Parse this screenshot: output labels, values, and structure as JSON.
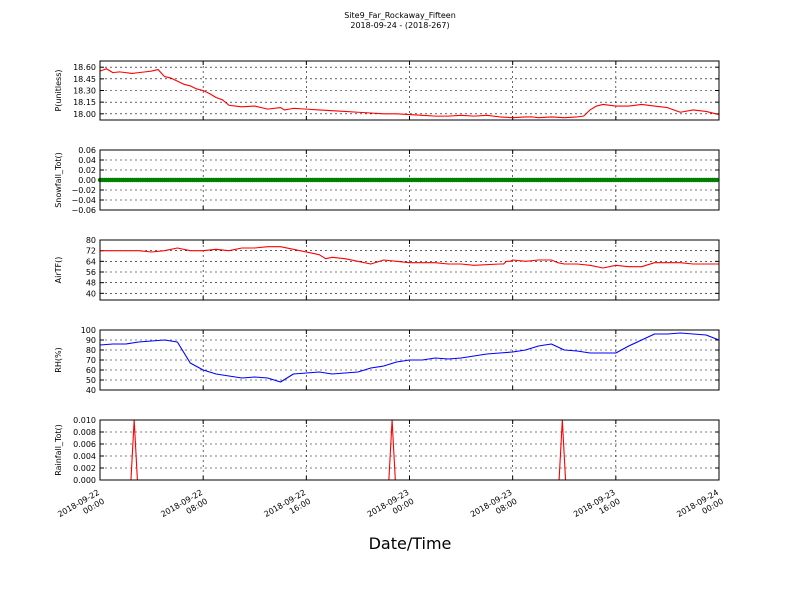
{
  "title": "Site9_Far_Rockaway_Fifteen",
  "subtitle": "2018-09-24 - (2018-267)",
  "xlabel": "Date/Time",
  "x_ticks": [
    [
      "2018-09-22",
      "00:00"
    ],
    [
      "2018-09-22",
      "08:00"
    ],
    [
      "2018-09-22",
      "16:00"
    ],
    [
      "2018-09-23",
      "00:00"
    ],
    [
      "2018-09-23",
      "08:00"
    ],
    [
      "2018-09-23",
      "16:00"
    ],
    [
      "2018-09-24",
      "00:00"
    ]
  ],
  "chart_data": [
    {
      "type": "line",
      "ylabel": "P(unitless)",
      "ylim": [
        17.92,
        18.68
      ],
      "yticks": [
        "18.60",
        "18.45",
        "18.30",
        "18.15",
        "18.00"
      ],
      "ytick_values": [
        18.6,
        18.45,
        18.3,
        18.15,
        18.0
      ],
      "xlim_hours": [
        0,
        48
      ],
      "grid": true,
      "series": [
        {
          "color": "#ff0000",
          "marker": "none",
          "x": [
            0,
            0.5,
            1,
            1.5,
            2,
            2.5,
            3,
            3.5,
            4,
            4.5,
            5,
            5.5,
            6,
            6.5,
            7,
            7.5,
            8,
            8.5,
            9,
            9.5,
            10,
            10.5,
            11,
            12,
            13,
            14,
            14.3,
            15,
            16,
            17,
            18,
            19,
            20,
            21,
            22,
            23,
            24,
            25,
            26,
            27,
            28,
            29,
            30,
            31,
            32,
            33,
            33.5,
            34,
            35,
            36,
            37,
            37.5,
            38,
            38.5,
            39,
            40,
            41,
            42,
            43,
            44,
            45,
            46,
            47,
            48
          ],
          "y": [
            18.55,
            18.58,
            18.53,
            18.54,
            18.53,
            18.52,
            18.53,
            18.54,
            18.55,
            18.57,
            18.48,
            18.46,
            18.42,
            18.38,
            18.36,
            18.32,
            18.3,
            18.26,
            18.21,
            18.18,
            18.11,
            18.1,
            18.09,
            18.1,
            18.06,
            18.08,
            18.05,
            18.07,
            18.06,
            18.05,
            18.04,
            18.03,
            18.02,
            18.01,
            18.0,
            18.0,
            17.99,
            17.98,
            17.97,
            17.97,
            17.98,
            17.97,
            17.98,
            17.96,
            17.95,
            17.96,
            17.96,
            17.95,
            17.96,
            17.95,
            17.96,
            17.97,
            18.05,
            18.1,
            18.12,
            18.1,
            18.1,
            18.12,
            18.1,
            18.08,
            18.02,
            18.05,
            18.03,
            17.99
          ]
        }
      ]
    },
    {
      "type": "scatter",
      "ylabel": "Snowfall_Tot()",
      "ylim": [
        -0.06,
        0.06
      ],
      "yticks": [
        "0.06",
        "0.04",
        "0.02",
        "0.00",
        "−0.02",
        "−0.04",
        "−0.06"
      ],
      "ytick_values": [
        0.06,
        0.04,
        0.02,
        0.0,
        -0.02,
        -0.04,
        -0.06
      ],
      "xlim_hours": [
        0,
        48
      ],
      "grid": true,
      "series": [
        {
          "color": "#008000",
          "marker": "dense-points",
          "x": [
            0,
            48
          ],
          "y": [
            0.0,
            0.0
          ]
        }
      ]
    },
    {
      "type": "line",
      "ylabel": "AirTF()",
      "ylim": [
        35,
        80
      ],
      "yticks": [
        "80",
        "72",
        "64",
        "56",
        "48",
        "40"
      ],
      "ytick_values": [
        80,
        72,
        64,
        56,
        48,
        40
      ],
      "xlim_hours": [
        0,
        48
      ],
      "grid": true,
      "series": [
        {
          "color": "#ff0000",
          "marker": "none",
          "x": [
            0,
            1,
            2,
            3,
            4,
            5,
            6,
            7,
            8,
            9,
            10,
            11,
            12,
            13,
            14,
            15,
            16,
            16.5,
            17,
            17.5,
            18,
            19,
            20,
            21,
            22,
            23,
            24,
            25,
            26,
            27,
            28,
            29,
            31,
            31.3,
            31.5,
            31.8,
            32,
            33,
            34,
            35,
            35.5,
            36,
            37,
            38,
            39,
            40,
            41,
            42,
            43,
            44,
            45,
            46,
            47,
            48
          ],
          "y": [
            72,
            72,
            72,
            72,
            71,
            72,
            74,
            72,
            72,
            73,
            72,
            74,
            74,
            75,
            75,
            73,
            71,
            70,
            69,
            66,
            67,
            66,
            64,
            62,
            65,
            64,
            63,
            63,
            63,
            62,
            62,
            61,
            62,
            62,
            64,
            64,
            65,
            64,
            65,
            65,
            63,
            62,
            62,
            61,
            59,
            61,
            60,
            60,
            63,
            63,
            63,
            62,
            62,
            62
          ]
        }
      ]
    },
    {
      "type": "line",
      "ylabel": "RH(%)",
      "ylim": [
        40,
        100
      ],
      "yticks": [
        "100",
        "90",
        "80",
        "70",
        "60",
        "50",
        "40"
      ],
      "ytick_values": [
        100,
        90,
        80,
        70,
        60,
        50,
        40
      ],
      "xlim_hours": [
        0,
        48
      ],
      "grid": true,
      "series": [
        {
          "color": "#0000ff",
          "marker": "none",
          "x": [
            0,
            1,
            2,
            3,
            4,
            5,
            6,
            7,
            8,
            9,
            10,
            11,
            12,
            13,
            14,
            15,
            16,
            17,
            18,
            19,
            20,
            21,
            22,
            23,
            24,
            25,
            26,
            27,
            28,
            29,
            30,
            31,
            32,
            33,
            34,
            35,
            36,
            37,
            38,
            39,
            40,
            41,
            42,
            43,
            44,
            45,
            46,
            47,
            48
          ],
          "y": [
            85,
            86,
            86,
            88,
            89,
            90,
            88,
            67,
            60,
            56,
            54,
            52,
            53,
            52,
            48,
            56,
            57,
            58,
            56,
            57,
            58,
            62,
            64,
            68,
            70,
            70,
            72,
            71,
            72,
            74,
            76,
            77,
            78,
            80,
            84,
            86,
            80,
            79,
            77,
            77,
            77,
            84,
            90,
            96,
            96,
            97,
            96,
            95,
            90
          ]
        }
      ]
    },
    {
      "type": "line",
      "ylabel": "Rainfall_Tot()",
      "ylim": [
        0.0,
        0.01
      ],
      "yticks": [
        "0.010",
        "0.008",
        "0.006",
        "0.004",
        "0.002",
        "0.000"
      ],
      "ytick_values": [
        0.01,
        0.008,
        0.006,
        0.004,
        0.002,
        0.0
      ],
      "xlim_hours": [
        0,
        48
      ],
      "grid": true,
      "series": [
        {
          "color": "#ff0000",
          "marker": "none",
          "x": [
            0,
            2.4,
            2.65,
            2.9,
            22.4,
            22.65,
            22.9,
            35.6,
            35.85,
            36.1,
            48
          ],
          "y": [
            0,
            0,
            0.01,
            0,
            0,
            0.01,
            0,
            0,
            0.01,
            0,
            0
          ]
        }
      ]
    }
  ]
}
